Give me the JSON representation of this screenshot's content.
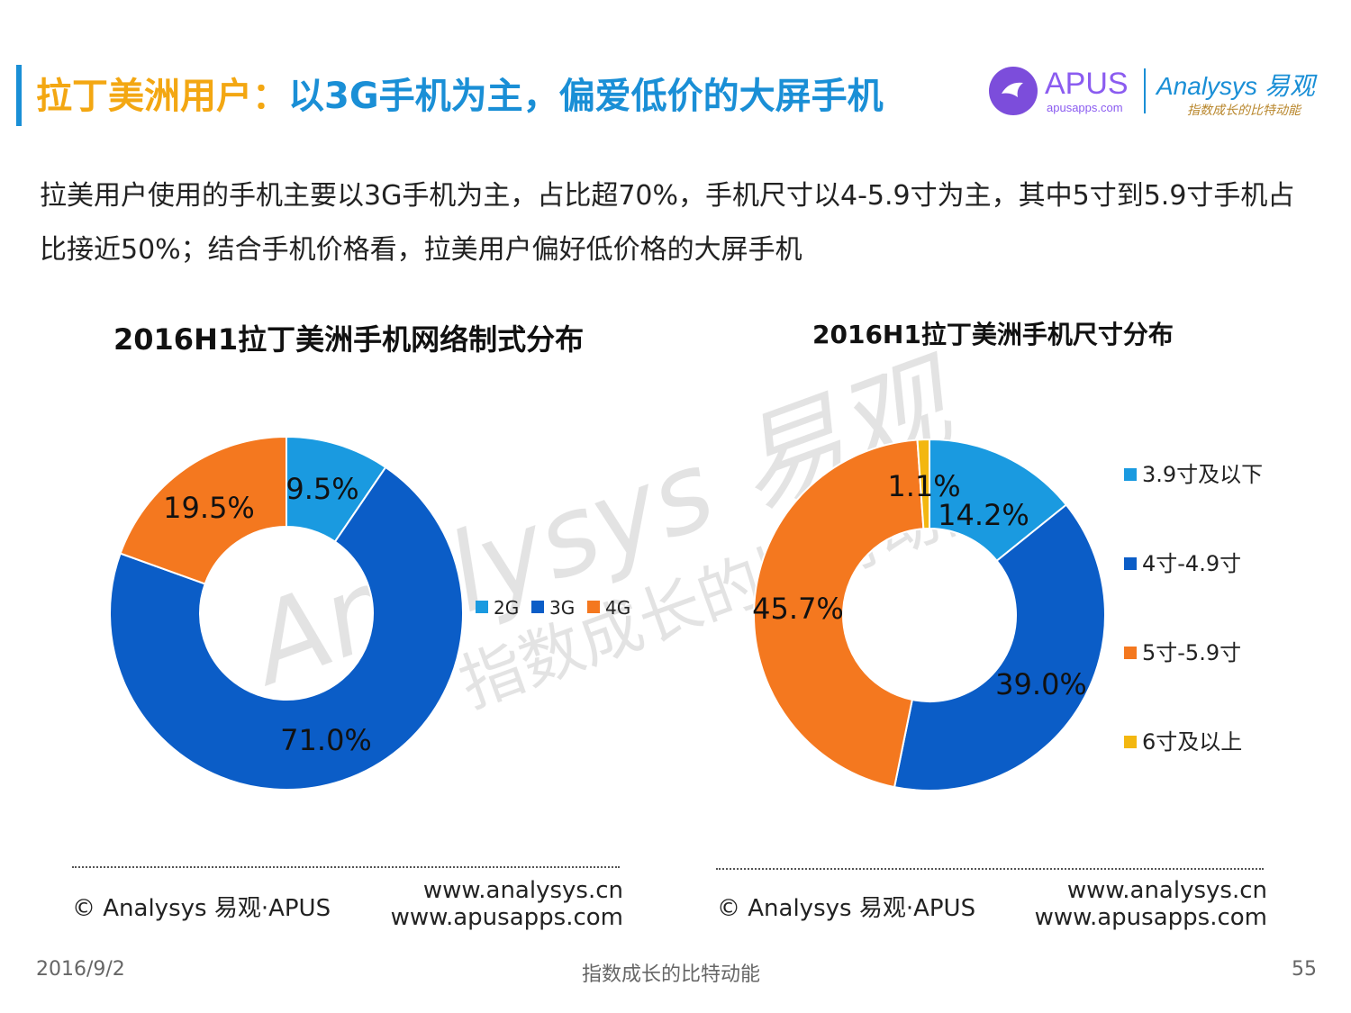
{
  "header": {
    "title_part1": "拉丁美洲用户：",
    "title_part2": "以3G手机为主，偏爱低价的大屏手机",
    "apus_logo": "APUS",
    "apus_sub": "apusapps.com",
    "analysys_logo": "Analysys 易观",
    "analysys_slogan": "指数成长的比特动能"
  },
  "description": "拉美用户使用的手机主要以3G手机为主，占比超70%，手机尺寸以4-5.9寸为主，其中5寸到5.9寸手机占比接近50%；结合手机价格看，拉美用户偏好低价格的大屏手机",
  "watermark": {
    "brand": "Analysys 易观",
    "slogan": "指数成长的比特动能"
  },
  "chart_data": [
    {
      "type": "pie",
      "title": "2016H1拉丁美洲手机网络制式分布",
      "categories": [
        "2G",
        "3G",
        "4G"
      ],
      "values": [
        9.5,
        71.0,
        19.5
      ],
      "labels": [
        "9.5%",
        "71.0%",
        "19.5%"
      ],
      "colors": [
        "#1a9ae0",
        "#0b5dc7",
        "#f4781f"
      ],
      "legend": "right"
    },
    {
      "type": "pie",
      "title": "2016H1拉丁美洲手机尺寸分布",
      "categories": [
        "3.9寸及以下",
        "4寸-4.9寸",
        "5寸-5.9寸",
        "6寸及以上"
      ],
      "values": [
        14.2,
        39.0,
        45.7,
        1.1
      ],
      "labels": [
        "14.2%",
        "39.0%",
        "45.7%",
        "1.1%"
      ],
      "colors": [
        "#1a9ae0",
        "#0b5dc7",
        "#f4781f",
        "#f3b710"
      ],
      "legend": "right"
    }
  ],
  "source_left": {
    "copyright": "© Analysys 易观·APUS",
    "url1": "www.analysys.cn",
    "url2": "www.apusapps.com"
  },
  "source_right": {
    "copyright": "© Analysys 易观·APUS",
    "url1": "www.analysys.cn",
    "url2": "www.apusapps.com"
  },
  "footer": {
    "date": "2016/9/2",
    "slogan": "指数成长的比特动能",
    "page": "55"
  }
}
